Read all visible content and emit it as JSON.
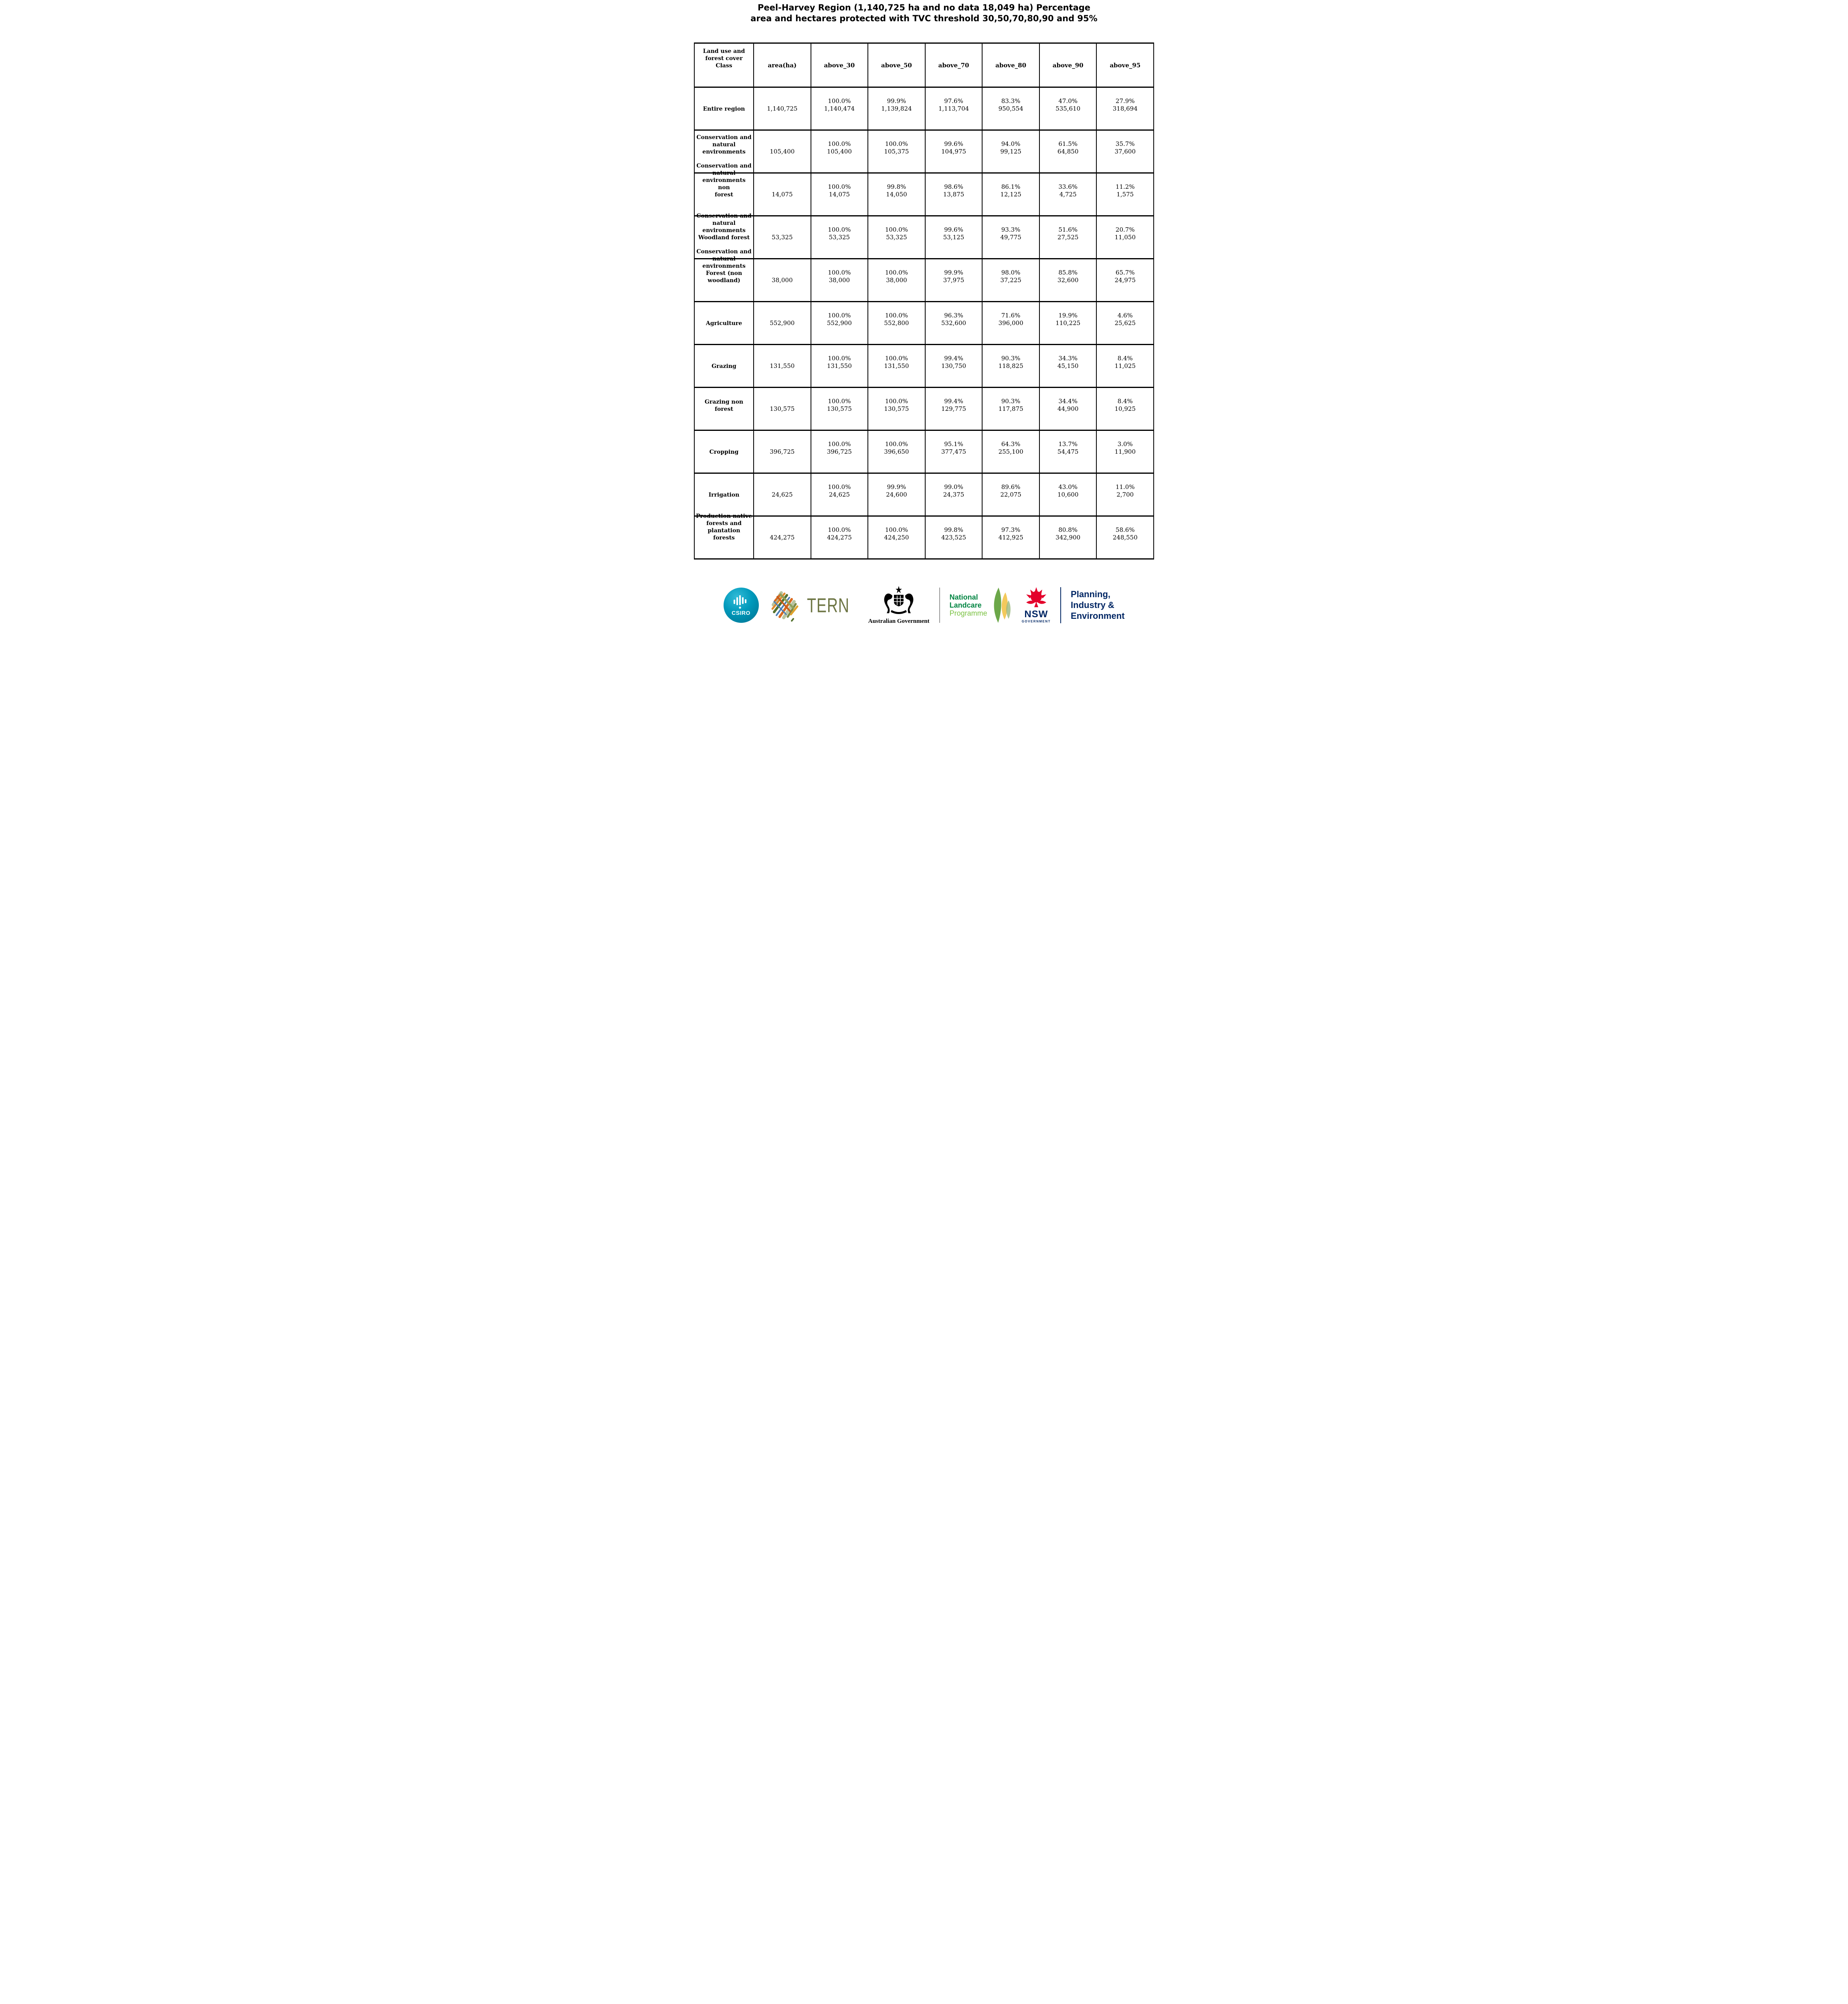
{
  "title": "Peel-Harvey Region (1,140,725 ha and no data 18,049 ha) Percentage\narea and hectares protected with TVC threshold 30,50,70,80,90 and 95%",
  "colors": {
    "csiro_teal": "#0099bb",
    "tern_olive": "#6e7645",
    "landcare_green": "#008542",
    "landcare_light": "#7ac142",
    "nsw_red": "#e4002b",
    "nsw_navy": "#002664"
  },
  "chart_data": {
    "type": "table",
    "title": "Peel-Harvey Region (1,140,725 ha and no data 18,049 ha) Percentage area and hectares protected with TVC threshold 30,50,70,80,90 and 95%",
    "columns": [
      "Land use and\nforest cover\nClass",
      "area(ha)",
      "above_30",
      "above_50",
      "above_70",
      "above_80",
      "above_90",
      "above_95"
    ],
    "rows": [
      {
        "label": "Entire region",
        "area": "1,140,725",
        "cells": [
          [
            "100.0%",
            "1,140,474"
          ],
          [
            "99.9%",
            "1,139,824"
          ],
          [
            "97.6%",
            "1,113,704"
          ],
          [
            "83.3%",
            "950,554"
          ],
          [
            "47.0%",
            "535,610"
          ],
          [
            "27.9%",
            "318,694"
          ]
        ]
      },
      {
        "label": "Conservation and\nnatural\nenvironments",
        "area": "105,400",
        "cells": [
          [
            "100.0%",
            "105,400"
          ],
          [
            "100.0%",
            "105,375"
          ],
          [
            "99.6%",
            "104,975"
          ],
          [
            "94.0%",
            "99,125"
          ],
          [
            "61.5%",
            "64,850"
          ],
          [
            "35.7%",
            "37,600"
          ]
        ]
      },
      {
        "label": "Conservation and\nnatural\nenvironments non\nforest",
        "area": "14,075",
        "cells": [
          [
            "100.0%",
            "14,075"
          ],
          [
            "99.8%",
            "14,050"
          ],
          [
            "98.6%",
            "13,875"
          ],
          [
            "86.1%",
            "12,125"
          ],
          [
            "33.6%",
            "4,725"
          ],
          [
            "11.2%",
            "1,575"
          ]
        ]
      },
      {
        "label": "Conservation and\nnatural\nenvironments\nWoodland forest",
        "area": "53,325",
        "cells": [
          [
            "100.0%",
            "53,325"
          ],
          [
            "100.0%",
            "53,325"
          ],
          [
            "99.6%",
            "53,125"
          ],
          [
            "93.3%",
            "49,775"
          ],
          [
            "51.6%",
            "27,525"
          ],
          [
            "20.7%",
            "11,050"
          ]
        ]
      },
      {
        "label": "Conservation and\nnatural\nenvironments\nForest (non\nwoodland)",
        "area": "38,000",
        "cells": [
          [
            "100.0%",
            "38,000"
          ],
          [
            "100.0%",
            "38,000"
          ],
          [
            "99.9%",
            "37,975"
          ],
          [
            "98.0%",
            "37,225"
          ],
          [
            "85.8%",
            "32,600"
          ],
          [
            "65.7%",
            "24,975"
          ]
        ]
      },
      {
        "label": "Agriculture",
        "area": "552,900",
        "cells": [
          [
            "100.0%",
            "552,900"
          ],
          [
            "100.0%",
            "552,800"
          ],
          [
            "96.3%",
            "532,600"
          ],
          [
            "71.6%",
            "396,000"
          ],
          [
            "19.9%",
            "110,225"
          ],
          [
            "4.6%",
            "25,625"
          ]
        ]
      },
      {
        "label": "Grazing",
        "area": "131,550",
        "cells": [
          [
            "100.0%",
            "131,550"
          ],
          [
            "100.0%",
            "131,550"
          ],
          [
            "99.4%",
            "130,750"
          ],
          [
            "90.3%",
            "118,825"
          ],
          [
            "34.3%",
            "45,150"
          ],
          [
            "8.4%",
            "11,025"
          ]
        ]
      },
      {
        "label": "Grazing non\nforest",
        "area": "130,575",
        "cells": [
          [
            "100.0%",
            "130,575"
          ],
          [
            "100.0%",
            "130,575"
          ],
          [
            "99.4%",
            "129,775"
          ],
          [
            "90.3%",
            "117,875"
          ],
          [
            "34.4%",
            "44,900"
          ],
          [
            "8.4%",
            "10,925"
          ]
        ]
      },
      {
        "label": "Cropping",
        "area": "396,725",
        "cells": [
          [
            "100.0%",
            "396,725"
          ],
          [
            "100.0%",
            "396,650"
          ],
          [
            "95.1%",
            "377,475"
          ],
          [
            "64.3%",
            "255,100"
          ],
          [
            "13.7%",
            "54,475"
          ],
          [
            "3.0%",
            "11,900"
          ]
        ]
      },
      {
        "label": "Irrigation",
        "area": "24,625",
        "cells": [
          [
            "100.0%",
            "24,625"
          ],
          [
            "99.9%",
            "24,600"
          ],
          [
            "99.0%",
            "24,375"
          ],
          [
            "89.6%",
            "22,075"
          ],
          [
            "43.0%",
            "10,600"
          ],
          [
            "11.0%",
            "2,700"
          ]
        ]
      },
      {
        "label": "Production native\nforests and\nplantation\nforests",
        "area": "424,275",
        "cells": [
          [
            "100.0%",
            "424,275"
          ],
          [
            "100.0%",
            "424,250"
          ],
          [
            "99.8%",
            "423,525"
          ],
          [
            "97.3%",
            "412,925"
          ],
          [
            "80.8%",
            "342,900"
          ],
          [
            "58.6%",
            "248,550"
          ]
        ]
      }
    ]
  },
  "footer": {
    "csiro_label": "CSIRO",
    "tern_label": "TERN",
    "aus_gov_label": "Australian Government",
    "landcare_line1": "National",
    "landcare_line2": "Landcare",
    "landcare_line3": "Programme",
    "nsw_label": "NSW",
    "nsw_sub": "GOVERNMENT",
    "dept_lines": "Planning,\nIndustry &\nEnvironment"
  }
}
